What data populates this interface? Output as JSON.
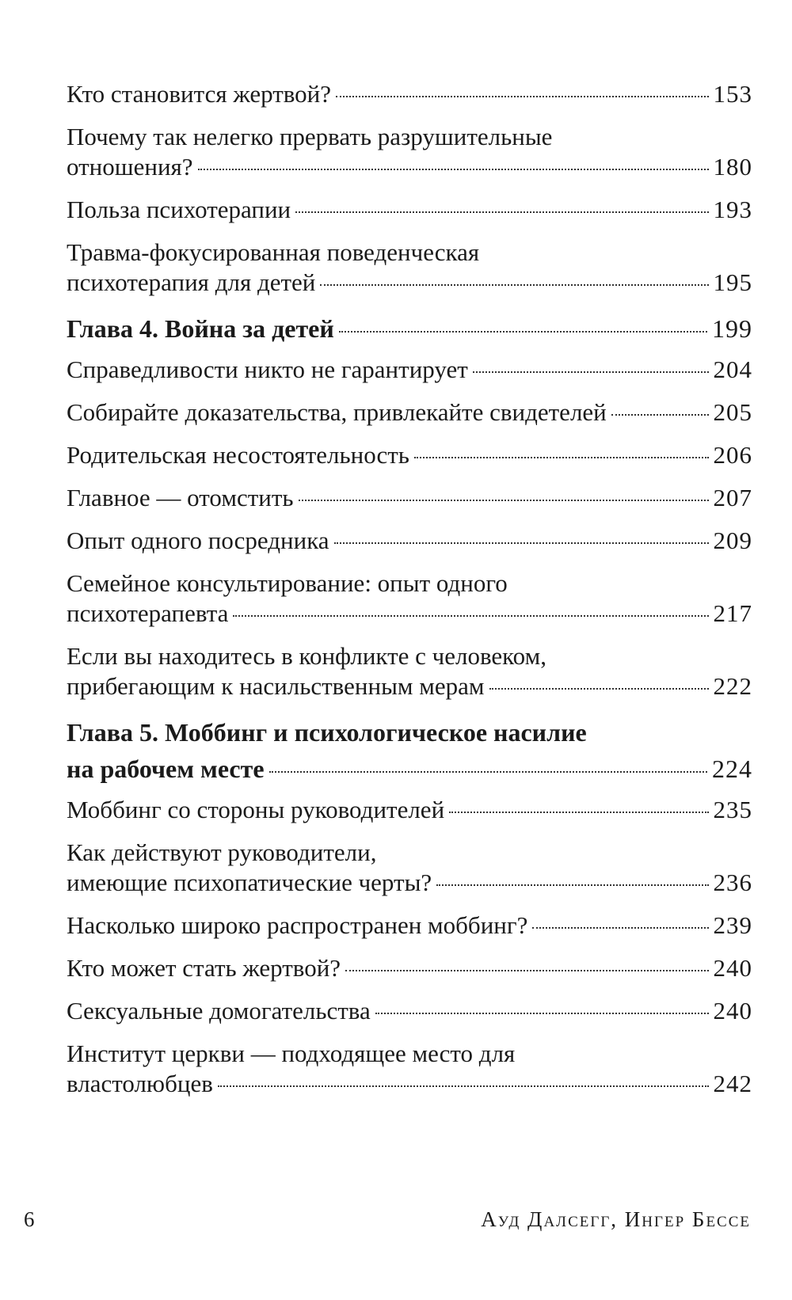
{
  "toc": [
    {
      "lines": [
        "Кто становится жертвой?"
      ],
      "page": "153",
      "chapter": false
    },
    {
      "lines": [
        "Почему так нелегко прервать разрушительные",
        "отношения?"
      ],
      "page": "180",
      "chapter": false
    },
    {
      "lines": [
        "Польза психотерапии"
      ],
      "page": "193",
      "chapter": false
    },
    {
      "lines": [
        "Травма-фокусированная поведенческая",
        "психотерапия для детей"
      ],
      "page": "195",
      "chapter": false
    },
    {
      "lines": [
        "Глава 4. Война за детей"
      ],
      "page": "199",
      "chapter": true
    },
    {
      "lines": [
        "Справедливости никто не гарантирует"
      ],
      "page": "204",
      "chapter": false
    },
    {
      "lines": [
        "Собирайте доказательства, привлекайте свидетелей"
      ],
      "page": "205",
      "chapter": false
    },
    {
      "lines": [
        "Родительская несостоятельность"
      ],
      "page": "206",
      "chapter": false
    },
    {
      "lines": [
        "Главное — отомстить"
      ],
      "page": "207",
      "chapter": false
    },
    {
      "lines": [
        "Опыт одного посредника"
      ],
      "page": "209",
      "chapter": false
    },
    {
      "lines": [
        "Семейное консультирование: опыт одного",
        "психотерапевта"
      ],
      "page": "217",
      "chapter": false
    },
    {
      "lines": [
        "Если вы находитесь в конфликте с человеком,",
        "прибегающим к насильственным мерам"
      ],
      "page": "222",
      "chapter": false
    },
    {
      "lines": [
        "Глава 5. Моббинг и психологическое насилие",
        "на рабочем месте"
      ],
      "page": "224",
      "chapter": true
    },
    {
      "lines": [
        "Моббинг со стороны руководителей"
      ],
      "page": "235",
      "chapter": false
    },
    {
      "lines": [
        "Как действуют руководители,",
        "имеющие психопатические черты?"
      ],
      "page": "236",
      "chapter": false
    },
    {
      "lines": [
        "Насколько широко распространен моббинг?"
      ],
      "page": "239",
      "chapter": false
    },
    {
      "lines": [
        "Кто может стать жертвой?"
      ],
      "page": "240",
      "chapter": false
    },
    {
      "lines": [
        "Сексуальные домогательства"
      ],
      "page": "240",
      "chapter": false
    },
    {
      "lines": [
        "Институт церкви — подходящее место для",
        "властолюбцев"
      ],
      "page": "242",
      "chapter": false
    }
  ],
  "footer": {
    "page_number": "6",
    "running_head": "Ауд Далсегг, Ингер Бессе"
  }
}
